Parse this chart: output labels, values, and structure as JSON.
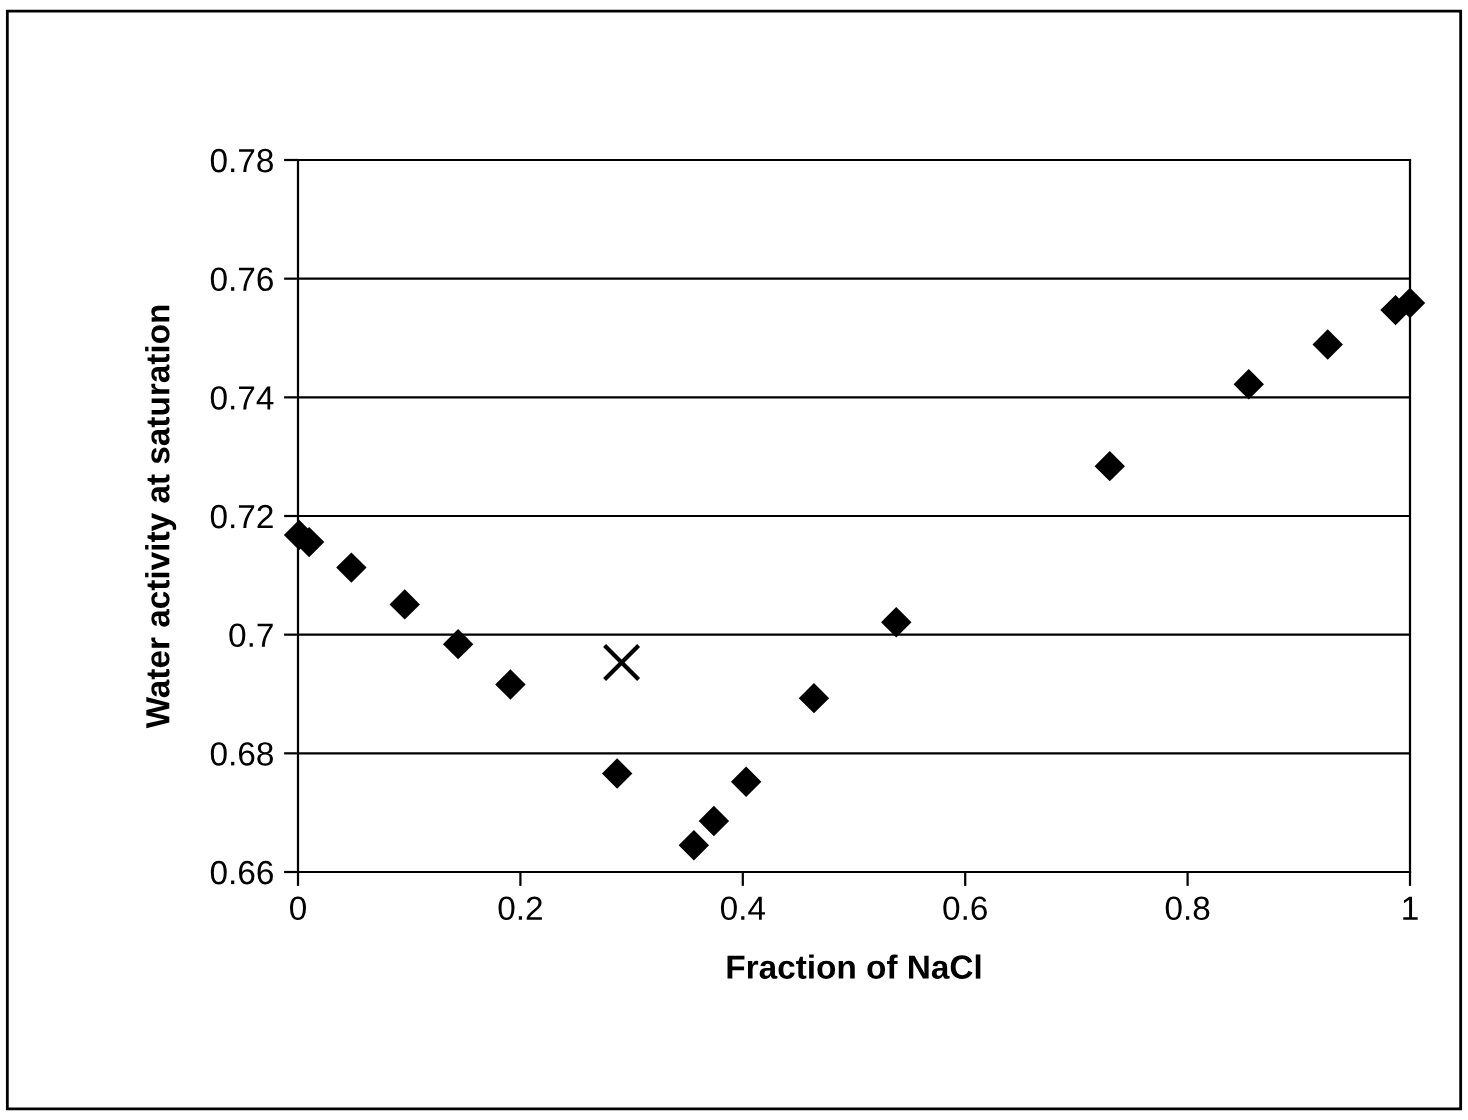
{
  "chart_data": {
    "type": "scatter",
    "xlabel": "Fraction of NaCl",
    "ylabel": "Water activity at saturation",
    "xlim": [
      0,
      1
    ],
    "xticks": [
      0,
      0.2,
      0.4,
      0.6,
      0.8,
      1
    ],
    "ylim": [
      0.66,
      0.78
    ],
    "yticks": [
      0.66,
      0.68,
      {
        "value": 0.7,
        "label": "0.7"
      },
      0.72,
      0.74,
      0.76,
      0.78
    ],
    "grid": "y",
    "series": [
      {
        "color": "#000000",
        "marker": "diamond",
        "x": [
          0.001,
          0.01,
          0.048,
          0.096,
          0.144,
          0.191,
          0.287,
          0.356,
          0.374,
          0.403,
          0.464,
          0.538,
          0.73,
          0.855,
          0.926,
          0.987,
          1.0
        ],
        "values": [
          0.7168,
          0.7156,
          0.7113,
          0.7051,
          0.6984,
          0.6916,
          0.6766,
          0.6645,
          0.6686,
          0.6752,
          0.6893,
          0.7021,
          0.7284,
          0.7422,
          0.7489,
          0.7547,
          0.7559
        ]
      },
      {
        "color": "#000000",
        "marker": "cross",
        "x": [
          0.291
        ],
        "values": [
          0.6953
        ]
      }
    ]
  }
}
